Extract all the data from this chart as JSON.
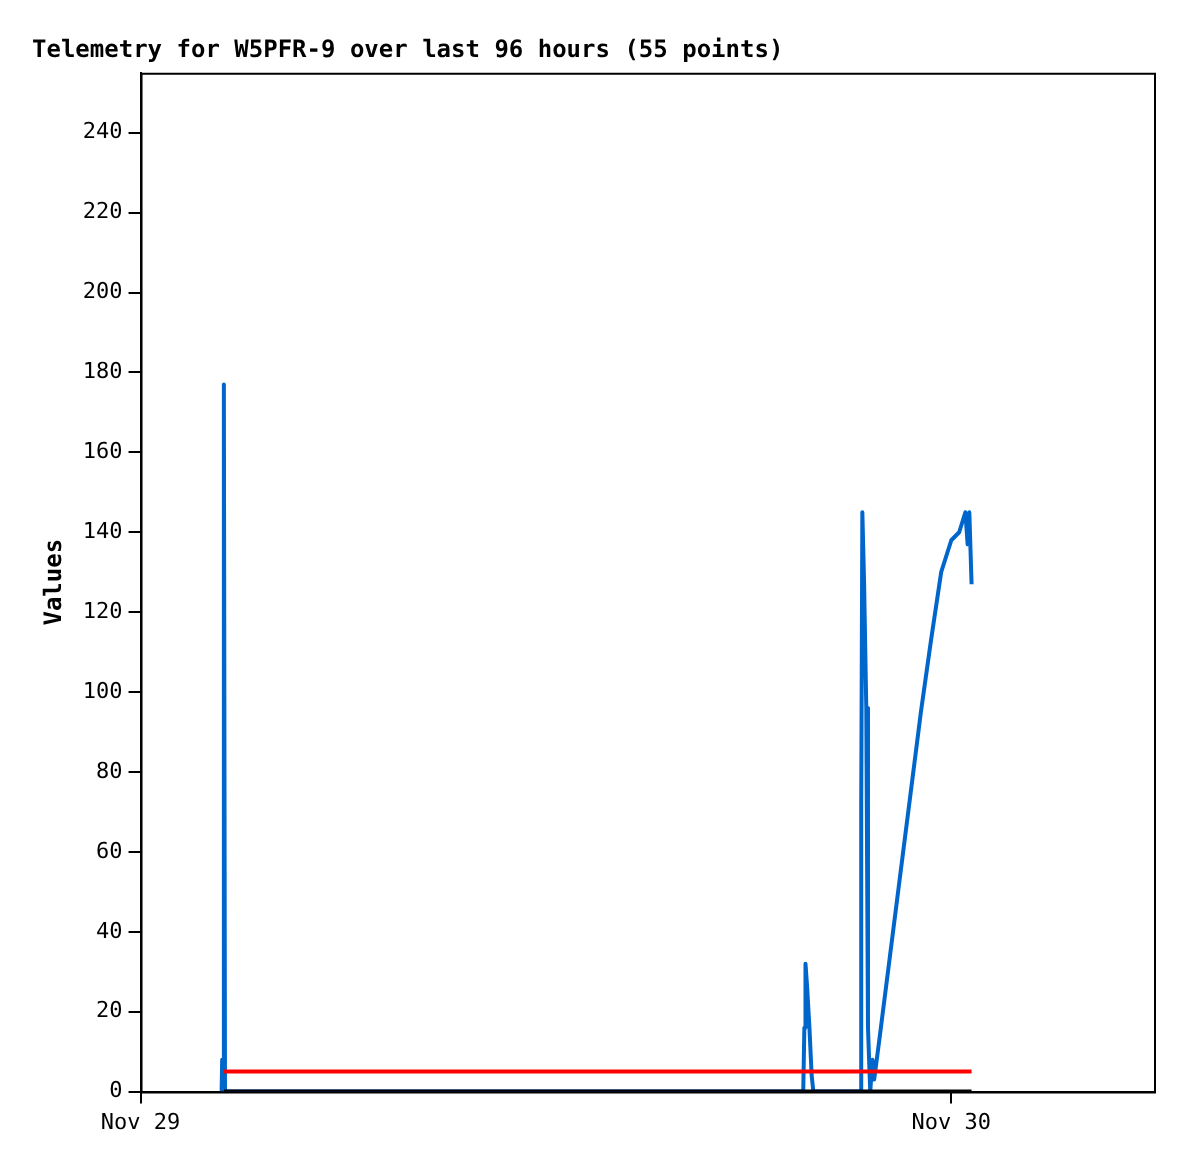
{
  "chart_data": {
    "type": "line",
    "title": "Telemetry for W5PFR-9 over last 96 hours (55 points)",
    "ylabel": "Values",
    "xlim": [
      "--11-29T00:00",
      "--11-30T06:00"
    ],
    "xticks": [
      {
        "value": "--11-29",
        "label": "Nov 29"
      },
      {
        "value": "--11-30",
        "label": "Nov 30"
      }
    ],
    "ylim": [
      0,
      255
    ],
    "yticks": [
      0,
      20,
      40,
      60,
      80,
      100,
      120,
      140,
      160,
      180,
      200,
      220,
      240
    ],
    "grid": false,
    "legend": false,
    "marker": "none",
    "line_style": "solid",
    "series": [
      {
        "color": "#000000",
        "x": [
          "--11-29T02:28",
          "--11-30T00:36"
        ],
        "values": [
          0,
          0
        ]
      },
      {
        "color": "#ff0000",
        "x": [
          "--11-29T02:28",
          "--11-30T00:36"
        ],
        "values": [
          5,
          5
        ]
      },
      {
        "color": "#0066cc",
        "x": [
          "--11-29T02:24",
          "--11-29T02:25",
          "--11-29T02:28",
          "--11-29T02:30",
          "--11-29T19:37",
          "--11-29T19:39",
          "--11-29T19:41",
          "--11-29T19:44",
          "--11-29T19:48",
          "--11-29T19:52",
          "--11-29T19:55",
          "--11-29T21:18",
          "--11-29T21:20",
          "--11-29T21:22",
          "--11-29T21:25",
          "--11-29T21:29",
          "--11-29T21:32",
          "--11-29T21:36",
          "--11-29T21:40",
          "--11-29T21:43",
          "--11-29T21:54",
          "--11-29T22:12",
          "--11-29T22:30",
          "--11-29T22:48",
          "--11-29T23:06",
          "--11-29T23:24",
          "--11-29T23:42",
          "--11-30T00:00",
          "--11-30T00:14",
          "--11-30T00:25",
          "--11-30T00:29",
          "--11-30T00:32",
          "--11-30T00:36"
        ],
        "values": [
          0,
          8,
          177,
          0,
          0,
          16,
          32,
          26,
          16,
          4,
          0,
          0,
          72,
          145,
          128,
          96,
          16,
          0,
          8,
          3,
          15,
          35,
          55,
          75,
          95,
          113,
          130,
          138,
          140,
          145,
          137,
          145,
          127
        ]
      }
    ]
  }
}
